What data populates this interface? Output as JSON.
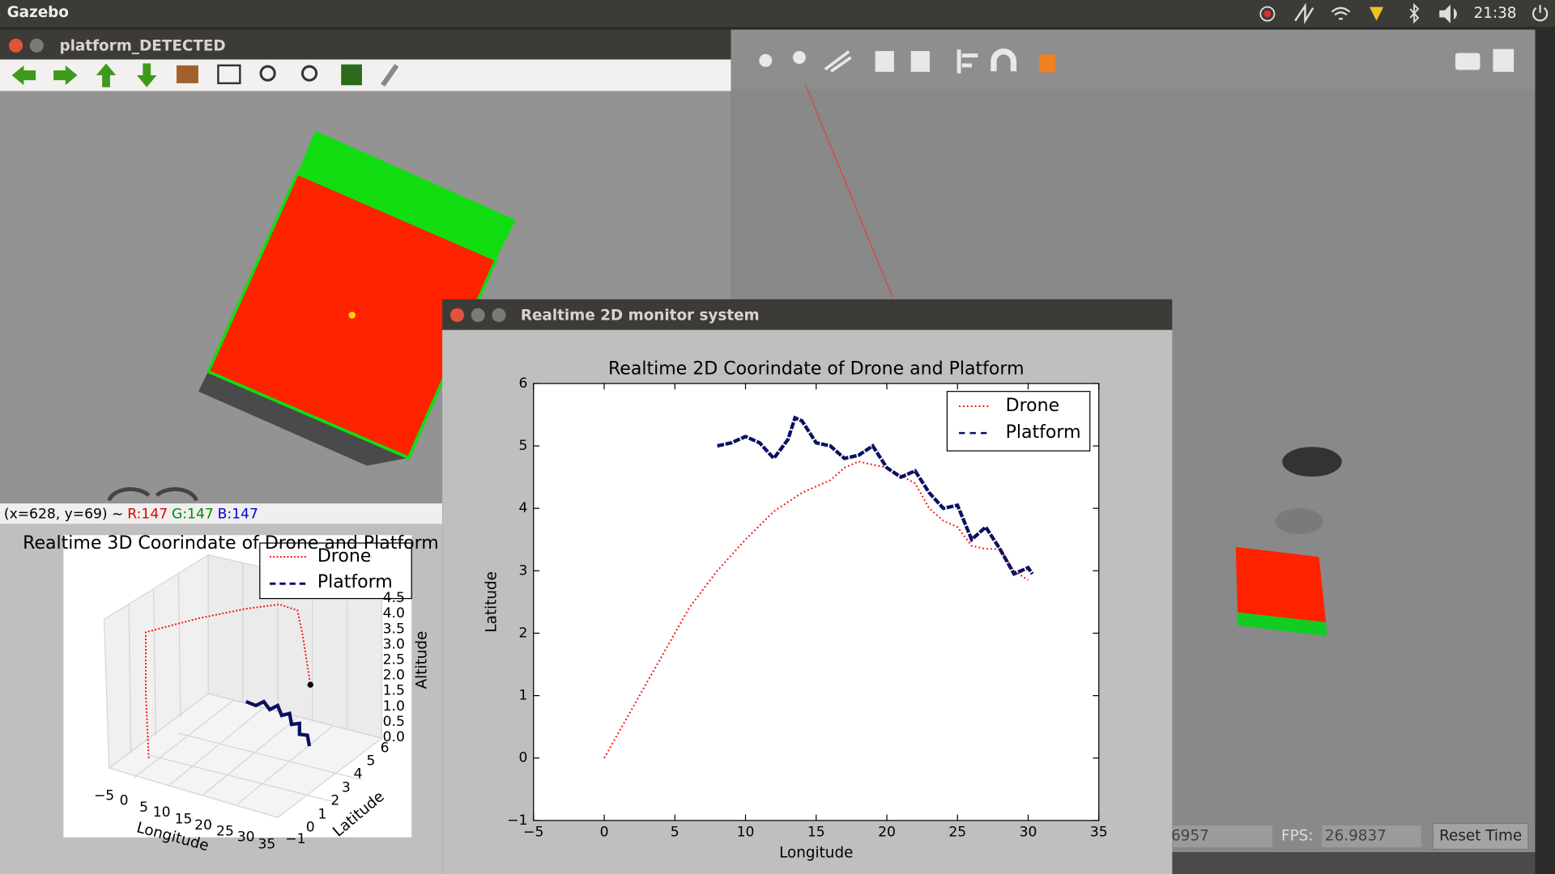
{
  "top_bar": {
    "app": "Gazebo",
    "time": "21:38"
  },
  "camera_window": {
    "title": "platform_DETECTED",
    "status": {
      "coords": "(x=628, y=69) ~",
      "r": "R:147",
      "g": "G:147",
      "b": "B:147"
    }
  },
  "gazebo": {
    "sim_time": "6957",
    "fps_label": "FPS:",
    "fps": "26.9837",
    "reset": "Reset Time"
  },
  "plot_3d": {
    "title": "Realtime 3D Coorindate of Drone and Platform",
    "legend": [
      "Drone",
      "Platform"
    ],
    "xlabel": "Longitude",
    "ylabel": "Latitude",
    "zlabel": "Altitude",
    "xticks": [
      "−5",
      "0",
      "5",
      "10",
      "15",
      "20",
      "25",
      "30",
      "35"
    ],
    "yticks": [
      "−1",
      "0",
      "1",
      "2",
      "3",
      "4",
      "5",
      "6"
    ],
    "zticks": [
      "0.0",
      "0.5",
      "1.0",
      "1.5",
      "2.0",
      "2.5",
      "3.0",
      "3.5",
      "4.0",
      "4.5"
    ]
  },
  "monitor_window": {
    "title": "Realtime 2D monitor system"
  },
  "chart_data": {
    "type": "line",
    "title": "Realtime 2D Coorindate of Drone and Platform",
    "xlabel": "Longitude",
    "ylabel": "Latitude",
    "xlim": [
      -5,
      35
    ],
    "ylim": [
      -1,
      6
    ],
    "xticks": [
      {
        "value": -5,
        "label": "−5"
      },
      0,
      5,
      10,
      15,
      20,
      25,
      30,
      35
    ],
    "yticks": [
      {
        "value": -1,
        "label": "−1"
      },
      0,
      1,
      2,
      3,
      4,
      5,
      6
    ],
    "legend": "upper right",
    "series": [
      {
        "name": "Drone",
        "color": "#ff0000",
        "style": "dotted",
        "x": [
          0,
          2,
          4,
          6,
          8,
          10,
          12,
          14,
          16,
          17,
          18,
          20,
          22,
          23,
          24,
          25,
          26,
          27,
          28,
          29,
          30
        ],
        "values": [
          0,
          0.8,
          1.6,
          2.4,
          3.0,
          3.5,
          3.95,
          4.25,
          4.45,
          4.65,
          4.75,
          4.65,
          4.4,
          4.0,
          3.8,
          3.7,
          3.4,
          3.35,
          3.35,
          3.0,
          2.85
        ]
      },
      {
        "name": "Platform",
        "color": "#0a1060",
        "style": "dashed",
        "x": [
          8,
          9,
          10,
          11,
          12,
          13,
          13.5,
          14,
          15,
          16,
          17,
          18,
          19,
          20,
          21,
          22,
          23,
          24,
          25,
          26,
          27,
          28,
          29,
          30,
          30.3
        ],
        "values": [
          5.0,
          5.05,
          5.15,
          5.05,
          4.8,
          5.1,
          5.45,
          5.4,
          5.05,
          5.0,
          4.8,
          4.85,
          5.0,
          4.65,
          4.5,
          4.6,
          4.25,
          4.0,
          4.05,
          3.5,
          3.7,
          3.35,
          2.95,
          3.05,
          2.95
        ]
      }
    ]
  }
}
